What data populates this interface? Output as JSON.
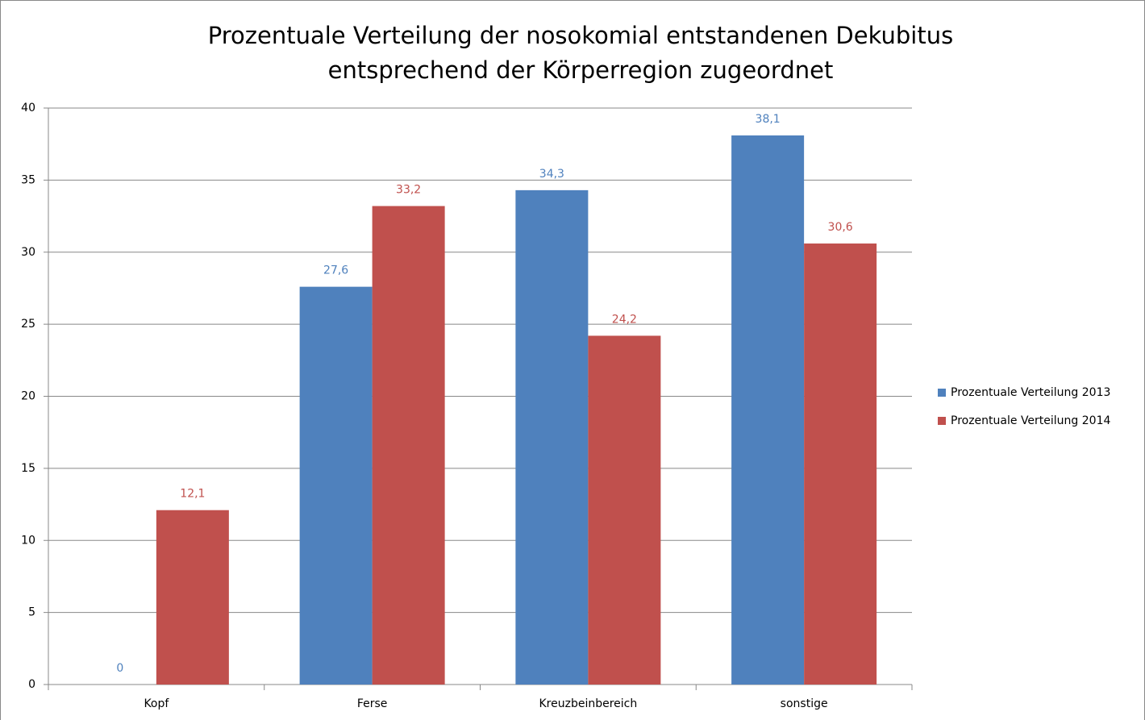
{
  "chart_data": {
    "type": "bar",
    "title": [
      "Prozentuale Verteilung der nosokomial entstandenen Dekubitus",
      "entsprechend der Körperregion zugeordnet"
    ],
    "categories": [
      "Kopf",
      "Ferse",
      "Kreuzbeinbereich",
      "sonstige"
    ],
    "series": [
      {
        "name": "Prozentuale Verteilung 2013",
        "color": "#4f81bd",
        "values": [
          0,
          27.6,
          34.3,
          38.1
        ],
        "value_labels": [
          "0",
          "27,6",
          "34,3",
          "38,1"
        ]
      },
      {
        "name": "Prozentuale Verteilung 2014",
        "color": "#c0504d",
        "values": [
          12.1,
          33.2,
          24.2,
          30.6
        ],
        "value_labels": [
          "12,1",
          "33,2",
          "24,2",
          "30,6"
        ]
      }
    ],
    "ylim": [
      0,
      40
    ],
    "yticks": [
      0,
      5,
      10,
      15,
      20,
      25,
      30,
      35,
      40
    ],
    "grid": true,
    "legend": "right"
  }
}
